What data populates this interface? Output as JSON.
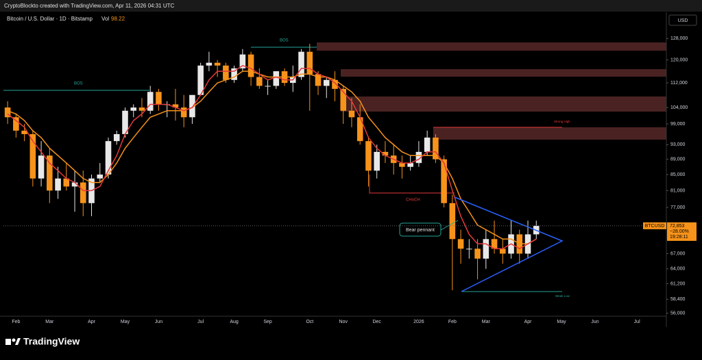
{
  "header": {
    "credit": "CryptoBlockto created with TradingView.com, Apr 11, 2026 04:31 UTC"
  },
  "footer": {
    "brand": "TradingView"
  },
  "chart_data": {
    "type": "candlestick",
    "title": "Bitcoin / U.S. Dollar · 1D · Bitstamp",
    "volume_label": "Vol",
    "volume_value": 98.22,
    "currency": "USD",
    "log_scale": true,
    "grid": false,
    "up_color": "#e8e8e8",
    "down_color": "#f7931a",
    "ylim": [
      55500,
      138500
    ],
    "yticks": [
      {
        "value": 128000,
        "label": "128,000"
      },
      {
        "value": 120000,
        "label": "120,000"
      },
      {
        "value": 112000,
        "label": "112,000"
      },
      {
        "value": 104000,
        "label": "104,000"
      },
      {
        "value": 99000,
        "label": "99,000"
      },
      {
        "value": 93000,
        "label": "93,000"
      },
      {
        "value": 89000,
        "label": "89,000"
      },
      {
        "value": 85000,
        "label": "85,000"
      },
      {
        "value": 81000,
        "label": "81,000"
      },
      {
        "value": 77000,
        "label": "77,000"
      },
      {
        "value": 67000,
        "label": "67,000"
      },
      {
        "value": 64000,
        "label": "64,000"
      },
      {
        "value": 61200,
        "label": "61,200"
      },
      {
        "value": 58400,
        "label": "58,400"
      },
      {
        "value": 56000,
        "label": "56,000"
      }
    ],
    "categories": [
      null,
      "Feb",
      null,
      null,
      null,
      "Mar",
      null,
      null,
      null,
      null,
      "Apr",
      null,
      null,
      null,
      "May",
      null,
      null,
      null,
      "Jun",
      null,
      null,
      null,
      null,
      "Jul",
      null,
      null,
      null,
      "Aug",
      null,
      null,
      null,
      "Sep",
      null,
      null,
      null,
      null,
      "Oct",
      null,
      null,
      null,
      "Nov",
      null,
      null,
      null,
      "Dec",
      null,
      null,
      null,
      null,
      "2026",
      null,
      null,
      null,
      "Feb",
      null,
      null,
      null,
      "Mar",
      null,
      null,
      null,
      null,
      "Apr",
      null,
      null,
      null,
      "May",
      null,
      null,
      null,
      "Jun",
      null,
      null,
      null,
      null,
      "Jul",
      null,
      null,
      null
    ],
    "open": [
      104000,
      101000,
      97000,
      96000,
      84000,
      90000,
      81000,
      84000,
      82000,
      83000,
      78000,
      84000,
      85000,
      94000,
      96000,
      103000,
      104000,
      103000,
      109000,
      105000,
      105000,
      104000,
      101000,
      108000,
      118000,
      119000,
      118000,
      113000,
      117000,
      122000,
      114000,
      111000,
      111000,
      116000,
      112000,
      114000,
      123000,
      115000,
      111000,
      113000,
      110000,
      103000,
      101000,
      94000,
      86000,
      91000,
      90000,
      88000,
      87000,
      88000,
      91000,
      95000,
      89000,
      78000,
      70000,
      68000,
      68000,
      66000,
      70000,
      68000,
      67000,
      71000,
      67000,
      71000,
      null,
      null,
      null,
      null,
      null,
      null,
      null,
      null,
      null,
      null,
      null,
      null,
      null,
      null,
      null
    ],
    "high": [
      106000,
      102000,
      99000,
      97000,
      94000,
      92000,
      87000,
      88000,
      86000,
      86000,
      85000,
      88000,
      95000,
      97000,
      104000,
      105000,
      107000,
      111000,
      110000,
      106000,
      110000,
      108000,
      108000,
      119000,
      123000,
      120000,
      119000,
      118000,
      124000,
      123000,
      117000,
      113000,
      116000,
      117000,
      118000,
      124000,
      126000,
      116000,
      114000,
      116000,
      111000,
      107000,
      105000,
      95000,
      93000,
      94000,
      93000,
      90000,
      90000,
      94000,
      97000,
      96000,
      90000,
      80000,
      72000,
      70000,
      70000,
      72000,
      74000,
      70000,
      74000,
      72000,
      74000,
      74000,
      null,
      null,
      null,
      null,
      null,
      null,
      null,
      null,
      null,
      null,
      null,
      null,
      null,
      null,
      null
    ],
    "low": [
      99000,
      95000,
      94000,
      82000,
      82000,
      78000,
      79000,
      81000,
      76000,
      75000,
      75000,
      83000,
      84000,
      93000,
      95000,
      101000,
      101000,
      102000,
      103000,
      101000,
      100000,
      98000,
      99000,
      108000,
      116000,
      114000,
      112000,
      112000,
      116000,
      111000,
      110000,
      108000,
      110000,
      111000,
      109000,
      113000,
      103000,
      108000,
      107000,
      106000,
      99000,
      98000,
      93000,
      82000,
      84000,
      88000,
      85000,
      84000,
      86000,
      87000,
      90000,
      88000,
      77000,
      60000,
      65000,
      66000,
      62000,
      64000,
      67000,
      65000,
      66000,
      65000,
      66000,
      70000,
      null,
      null,
      null,
      null,
      null,
      null,
      null,
      null,
      null,
      null,
      null,
      null,
      null,
      null,
      null
    ],
    "close": [
      101000,
      97000,
      96000,
      84000,
      90000,
      81000,
      84000,
      82000,
      83000,
      78000,
      84000,
      85000,
      94000,
      96000,
      103000,
      104000,
      103000,
      109000,
      105000,
      105000,
      104000,
      101000,
      108000,
      118000,
      119000,
      118000,
      113000,
      117000,
      122000,
      114000,
      111000,
      111000,
      116000,
      112000,
      114000,
      123000,
      115000,
      111000,
      113000,
      110000,
      103000,
      101000,
      94000,
      86000,
      91000,
      90000,
      88000,
      87000,
      88000,
      91000,
      95000,
      89000,
      78000,
      70000,
      68000,
      68000,
      66000,
      70000,
      68000,
      67000,
      71000,
      67000,
      71000,
      72853,
      null,
      null,
      null,
      null,
      null,
      null,
      null,
      null,
      null,
      null,
      null,
      null,
      null,
      null,
      null
    ],
    "lines": [
      {
        "color": "#f7931a",
        "values": [
          103000,
          102000,
          100000,
          97000,
          95000,
          92000,
          90000,
          88000,
          86000,
          84000,
          83000,
          83000,
          85000,
          88000,
          92000,
          95000,
          98000,
          101000,
          102000,
          103000,
          103000,
          103000,
          104000,
          106000,
          109000,
          112000,
          113000,
          114000,
          116000,
          116000,
          115000,
          114000,
          114000,
          114000,
          114000,
          115000,
          115000,
          114000,
          114000,
          113000,
          111000,
          109000,
          106000,
          101000,
          98000,
          95000,
          93000,
          91000,
          90000,
          90000,
          90000,
          90000,
          88000,
          84000,
          79000,
          76000,
          73000,
          72000,
          71000,
          70000,
          70000,
          69000,
          69000,
          70000,
          null,
          null,
          null,
          null,
          null,
          null,
          null,
          null,
          null,
          null,
          null,
          null,
          null,
          null,
          null
        ]
      },
      {
        "color": "#e5393a",
        "values": [
          102000,
          100000,
          98000,
          94000,
          91000,
          88000,
          86000,
          84000,
          83000,
          81000,
          81000,
          82000,
          86000,
          90000,
          96000,
          100000,
          102000,
          105000,
          105000,
          105000,
          104000,
          103000,
          104000,
          108000,
          113000,
          116000,
          116000,
          116000,
          118000,
          117000,
          115000,
          113000,
          114000,
          113000,
          113000,
          117000,
          117000,
          115000,
          114000,
          112000,
          109000,
          106000,
          101000,
          95000,
          92000,
          90000,
          89000,
          88000,
          88000,
          89000,
          91000,
          91000,
          88000,
          81000,
          75000,
          71000,
          69000,
          69000,
          68000,
          68000,
          69000,
          68000,
          69000,
          70000,
          null,
          null,
          null,
          null,
          null,
          null,
          null,
          null,
          null,
          null,
          null,
          null,
          null,
          null,
          null
        ]
      }
    ],
    "price_tag": {
      "symbol": "BTCUSD",
      "price": "72,853",
      "change": "−28.00%",
      "countdown": "19:28:11"
    },
    "annotations": {
      "bos_left": "BOS",
      "bos_top": "BOS",
      "choch": "CHoCH",
      "bear_pennant": "Bear pennant",
      "strong_high": "Strong High",
      "weak_low": "Weak Low"
    }
  }
}
